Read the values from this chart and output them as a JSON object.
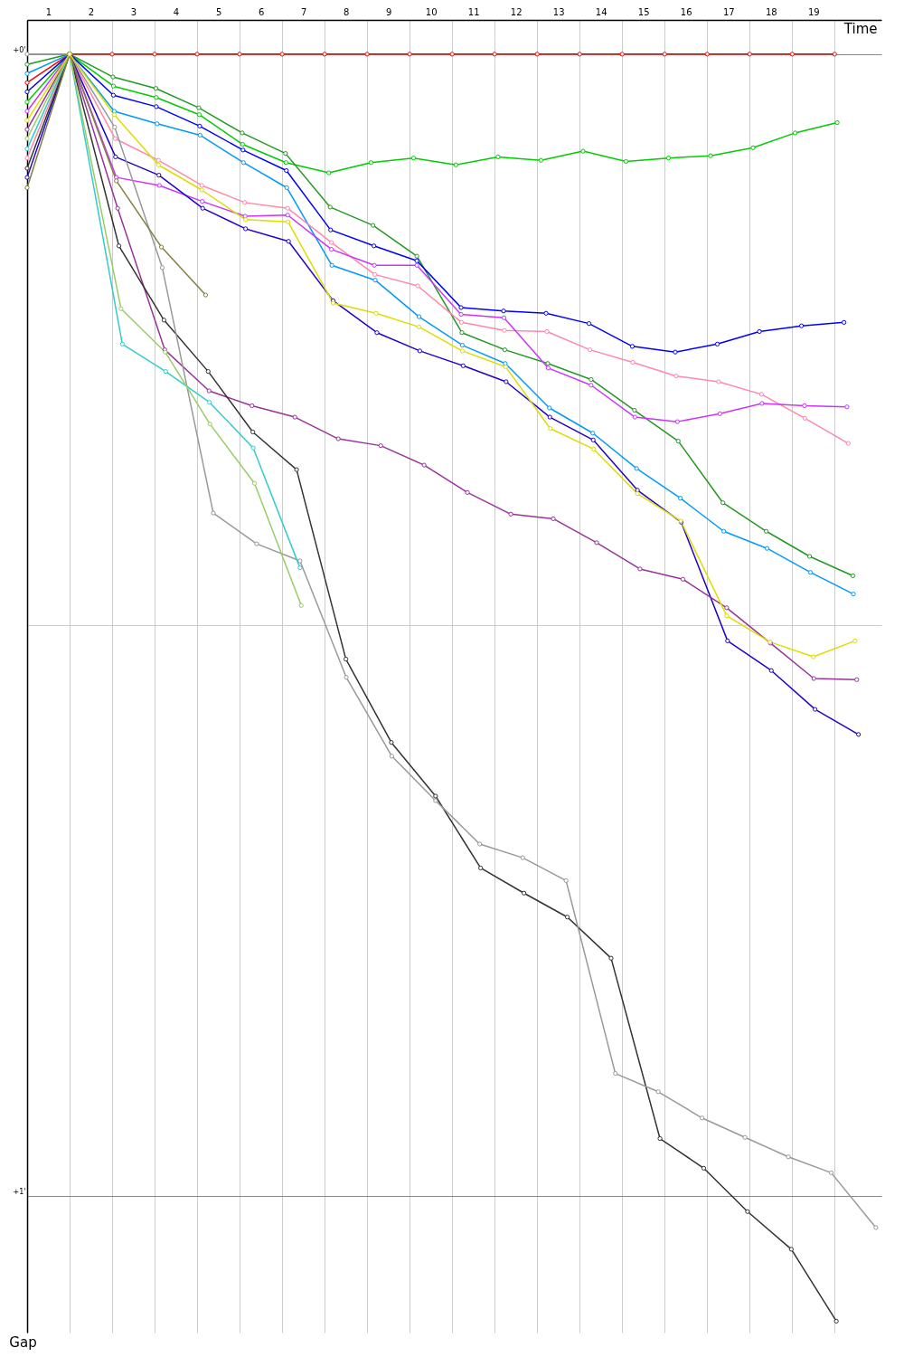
{
  "chart_data": {
    "type": "line",
    "xlabel": "Time",
    "ylabel": "Gap",
    "xlim": [
      0,
      20.1
    ],
    "ylim": [
      1.12,
      -0.03
    ],
    "xticks": [
      {
        "value": 0.5,
        "label": "1"
      },
      {
        "value": 1.5,
        "label": "2"
      },
      {
        "value": 2.5,
        "label": "3"
      },
      {
        "value": 3.5,
        "label": "4"
      },
      {
        "value": 4.5,
        "label": "5"
      },
      {
        "value": 5.5,
        "label": "6"
      },
      {
        "value": 6.5,
        "label": "7"
      },
      {
        "value": 7.5,
        "label": "8"
      },
      {
        "value": 8.5,
        "label": "9"
      },
      {
        "value": 9.5,
        "label": "10"
      },
      {
        "value": 10.5,
        "label": "11"
      },
      {
        "value": 11.5,
        "label": "12"
      },
      {
        "value": 12.5,
        "label": "13"
      },
      {
        "value": 13.5,
        "label": "14"
      },
      {
        "value": 14.5,
        "label": "15"
      },
      {
        "value": 15.5,
        "label": "16"
      },
      {
        "value": 16.5,
        "label": "17"
      },
      {
        "value": 17.5,
        "label": "18"
      },
      {
        "value": 18.5,
        "label": "19"
      },
      {
        "value": 1,
        "label": null
      },
      {
        "value": 2,
        "label": null
      },
      {
        "value": 3,
        "label": null
      },
      {
        "value": 4,
        "label": null
      },
      {
        "value": 5,
        "label": null
      },
      {
        "value": 6,
        "label": null
      },
      {
        "value": 7,
        "label": null
      },
      {
        "value": 8,
        "label": null
      },
      {
        "value": 9,
        "label": null
      },
      {
        "value": 10,
        "label": null
      },
      {
        "value": 11,
        "label": null
      },
      {
        "value": 12,
        "label": null
      },
      {
        "value": 13,
        "label": null
      },
      {
        "value": 14,
        "label": null
      },
      {
        "value": 15,
        "label": null
      },
      {
        "value": 16,
        "label": null
      },
      {
        "value": 17,
        "label": null
      },
      {
        "value": 18,
        "label": null
      },
      {
        "value": 19,
        "label": null
      }
    ],
    "yticks": [
      {
        "value": 0,
        "label": "+0'"
      },
      {
        "value": 0.5,
        "label": null
      },
      {
        "value": 1,
        "label": "+1'"
      }
    ],
    "grid": true,
    "marker": "circle",
    "line_style": "solid",
    "series": [
      {
        "color": "#ff0000",
        "x": [
          0,
          1,
          2,
          3,
          4,
          5,
          6,
          7,
          8,
          9,
          10,
          11,
          12,
          13,
          14,
          15,
          16,
          17,
          18,
          19
        ],
        "values": [
          0.025,
          0,
          0,
          0,
          0,
          0,
          0,
          0,
          0,
          0,
          0,
          0,
          0,
          0,
          0,
          0,
          0,
          0,
          0,
          0
        ]
      },
      {
        "color": "#00cc00",
        "x": [
          0,
          1,
          2.03,
          3.04,
          4.05,
          5.07,
          6.09,
          7.1,
          8.09,
          9.09,
          10.09,
          11.08,
          12.09,
          13.08,
          14.09,
          15.09,
          16.08,
          17.08,
          18.07,
          19.06
        ],
        "values": [
          0.042,
          0,
          0.028,
          0.038,
          0.053,
          0.079,
          0.095,
          0.104,
          0.095,
          0.091,
          0.097,
          0.09,
          0.093,
          0.085,
          0.094,
          0.091,
          0.089,
          0.082,
          0.069,
          0.06
        ]
      },
      {
        "color": "#229922",
        "x": [
          0,
          1,
          2.02,
          3.03,
          4.04,
          5.06,
          6.08,
          7.13,
          8.14,
          9.17,
          10.23,
          11.24,
          12.25,
          13.27,
          14.29,
          15.32,
          16.37,
          17.39,
          18.41,
          19.43
        ],
        "values": [
          0.009,
          0,
          0.02,
          0.03,
          0.047,
          0.069,
          0.087,
          0.134,
          0.15,
          0.177,
          0.244,
          0.259,
          0.271,
          0.285,
          0.312,
          0.339,
          0.393,
          0.418,
          0.44,
          0.457
        ]
      },
      {
        "color": "#0000ff",
        "x": [
          0,
          1,
          2.03,
          3.04,
          4.06,
          5.08,
          6.1,
          7.14,
          8.16,
          9.17,
          10.21,
          11.21,
          12.21,
          13.22,
          14.24,
          15.25,
          16.24,
          17.23,
          18.22,
          19.22
        ],
        "values": [
          0.033,
          0,
          0.036,
          0.046,
          0.063,
          0.084,
          0.102,
          0.154,
          0.168,
          0.181,
          0.222,
          0.225,
          0.227,
          0.236,
          0.256,
          0.261,
          0.254,
          0.243,
          0.238,
          0.235
        ]
      },
      {
        "color": "#0099ff",
        "x": [
          0,
          1,
          2.05,
          3.06,
          4.07,
          5.09,
          6.11,
          7.17,
          8.19,
          9.22,
          10.24,
          11.25,
          12.29,
          13.31,
          14.34,
          15.37,
          16.39,
          17.41,
          18.43,
          19.44
        ],
        "values": [
          0.017,
          0,
          0.05,
          0.061,
          0.071,
          0.095,
          0.117,
          0.185,
          0.198,
          0.23,
          0.255,
          0.271,
          0.31,
          0.332,
          0.363,
          0.389,
          0.418,
          0.433,
          0.454,
          0.473
        ]
      },
      {
        "color": "#ff88aa",
        "x": [
          0,
          1,
          2.07,
          3.09,
          4.11,
          5.12,
          6.13,
          7.16,
          8.18,
          9.19,
          10.22,
          11.23,
          12.23,
          13.24,
          14.25,
          15.27,
          16.27,
          17.28,
          18.3,
          19.32
        ],
        "values": [
          0.091,
          0,
          0.074,
          0.093,
          0.115,
          0.13,
          0.135,
          0.165,
          0.193,
          0.203,
          0.235,
          0.242,
          0.243,
          0.259,
          0.27,
          0.282,
          0.287,
          0.298,
          0.319,
          0.341
        ]
      },
      {
        "color": "#cc33ff",
        "x": [
          0,
          1,
          2.1,
          3.11,
          4.12,
          5.13,
          6.13,
          7.16,
          8.17,
          9.17,
          10.21,
          11.22,
          12.26,
          13.27,
          14.3,
          15.3,
          16.3,
          17.29,
          18.29,
          19.29
        ],
        "values": [
          0.05,
          0,
          0.108,
          0.115,
          0.129,
          0.142,
          0.141,
          0.171,
          0.185,
          0.185,
          0.228,
          0.231,
          0.275,
          0.29,
          0.318,
          0.322,
          0.315,
          0.306,
          0.308,
          0.309
        ]
      },
      {
        "color": "#2200cc",
        "x": [
          0,
          1,
          2.08,
          3.1,
          4.13,
          5.14,
          6.15,
          7.2,
          8.23,
          9.24,
          10.26,
          11.27,
          12.3,
          13.32,
          14.36,
          15.39,
          16.48,
          17.51,
          18.54,
          19.56
        ],
        "values": [
          0.108,
          0,
          0.09,
          0.106,
          0.135,
          0.153,
          0.164,
          0.216,
          0.244,
          0.26,
          0.273,
          0.287,
          0.318,
          0.338,
          0.382,
          0.41,
          0.514,
          0.54,
          0.574,
          0.596
        ]
      },
      {
        "color": "#993399",
        "x": [
          0,
          1,
          2.13,
          3.24,
          4.28,
          5.29,
          6.3,
          7.32,
          8.32,
          9.34,
          10.36,
          11.38,
          12.38,
          13.4,
          14.42,
          15.43,
          16.46,
          17.49,
          18.51,
          19.52
        ],
        "values": [
          0.066,
          0,
          0.135,
          0.259,
          0.295,
          0.308,
          0.318,
          0.337,
          0.343,
          0.36,
          0.384,
          0.403,
          0.407,
          0.428,
          0.451,
          0.46,
          0.485,
          0.516,
          0.547,
          0.548
        ]
      },
      {
        "color": "#333333",
        "x": [
          0,
          1,
          2.16,
          3.22,
          4.26,
          5.31,
          6.34,
          7.5,
          8.57,
          9.61,
          10.67,
          11.69,
          12.71,
          13.74,
          14.89,
          15.92,
          16.95,
          17.98,
          19.04
        ],
        "values": [
          0.1,
          0,
          0.168,
          0.233,
          0.278,
          0.331,
          0.364,
          0.53,
          0.603,
          0.65,
          0.713,
          0.735,
          0.756,
          0.792,
          0.95,
          0.976,
          1.014,
          1.047,
          1.11
        ]
      },
      {
        "color": "#999999",
        "x": [
          0,
          1,
          2.06,
          3.18,
          4.38,
          5.4,
          6.42,
          7.51,
          8.58,
          9.61,
          10.65,
          11.66,
          12.68,
          13.84,
          14.85,
          15.88,
          16.89,
          17.91,
          18.92,
          19.97
        ],
        "values": [
          0,
          0,
          0.064,
          0.187,
          0.402,
          0.429,
          0.444,
          0.546,
          0.615,
          0.654,
          0.692,
          0.704,
          0.724,
          0.893,
          0.909,
          0.932,
          0.949,
          0.966,
          0.98,
          1.028
        ]
      },
      {
        "color": "#33cccc",
        "x": [
          0,
          1,
          2.24,
          3.26,
          4.29,
          5.32,
          6.42
        ],
        "values": [
          0.083,
          0,
          0.254,
          0.278,
          0.305,
          0.345,
          0.45
        ]
      },
      {
        "color": "#99cc66",
        "x": [
          0,
          1,
          2.21,
          3.25,
          4.3,
          5.35,
          6.45
        ],
        "values": [
          0.074,
          0,
          0.223,
          0.261,
          0.324,
          0.376,
          0.483
        ]
      },
      {
        "color": "#808040",
        "x": [
          0,
          1,
          2.1,
          3.16,
          4.2
        ],
        "values": [
          0.117,
          0,
          0.111,
          0.169,
          0.211
        ]
      },
      {
        "color": "#dddd00",
        "x": [
          0,
          1,
          2.05,
          3.09,
          4.11,
          5.14,
          6.14,
          7.2,
          8.21,
          9.22,
          10.24,
          11.26,
          12.31,
          13.33,
          14.36,
          15.38,
          16.46,
          17.48,
          18.5,
          19.48
        ],
        "values": [
          0.058,
          0,
          0.053,
          0.097,
          0.119,
          0.145,
          0.147,
          0.218,
          0.227,
          0.239,
          0.26,
          0.274,
          0.328,
          0.346,
          0.385,
          0.409,
          0.492,
          0.515,
          0.528,
          0.514
        ]
      }
    ]
  }
}
